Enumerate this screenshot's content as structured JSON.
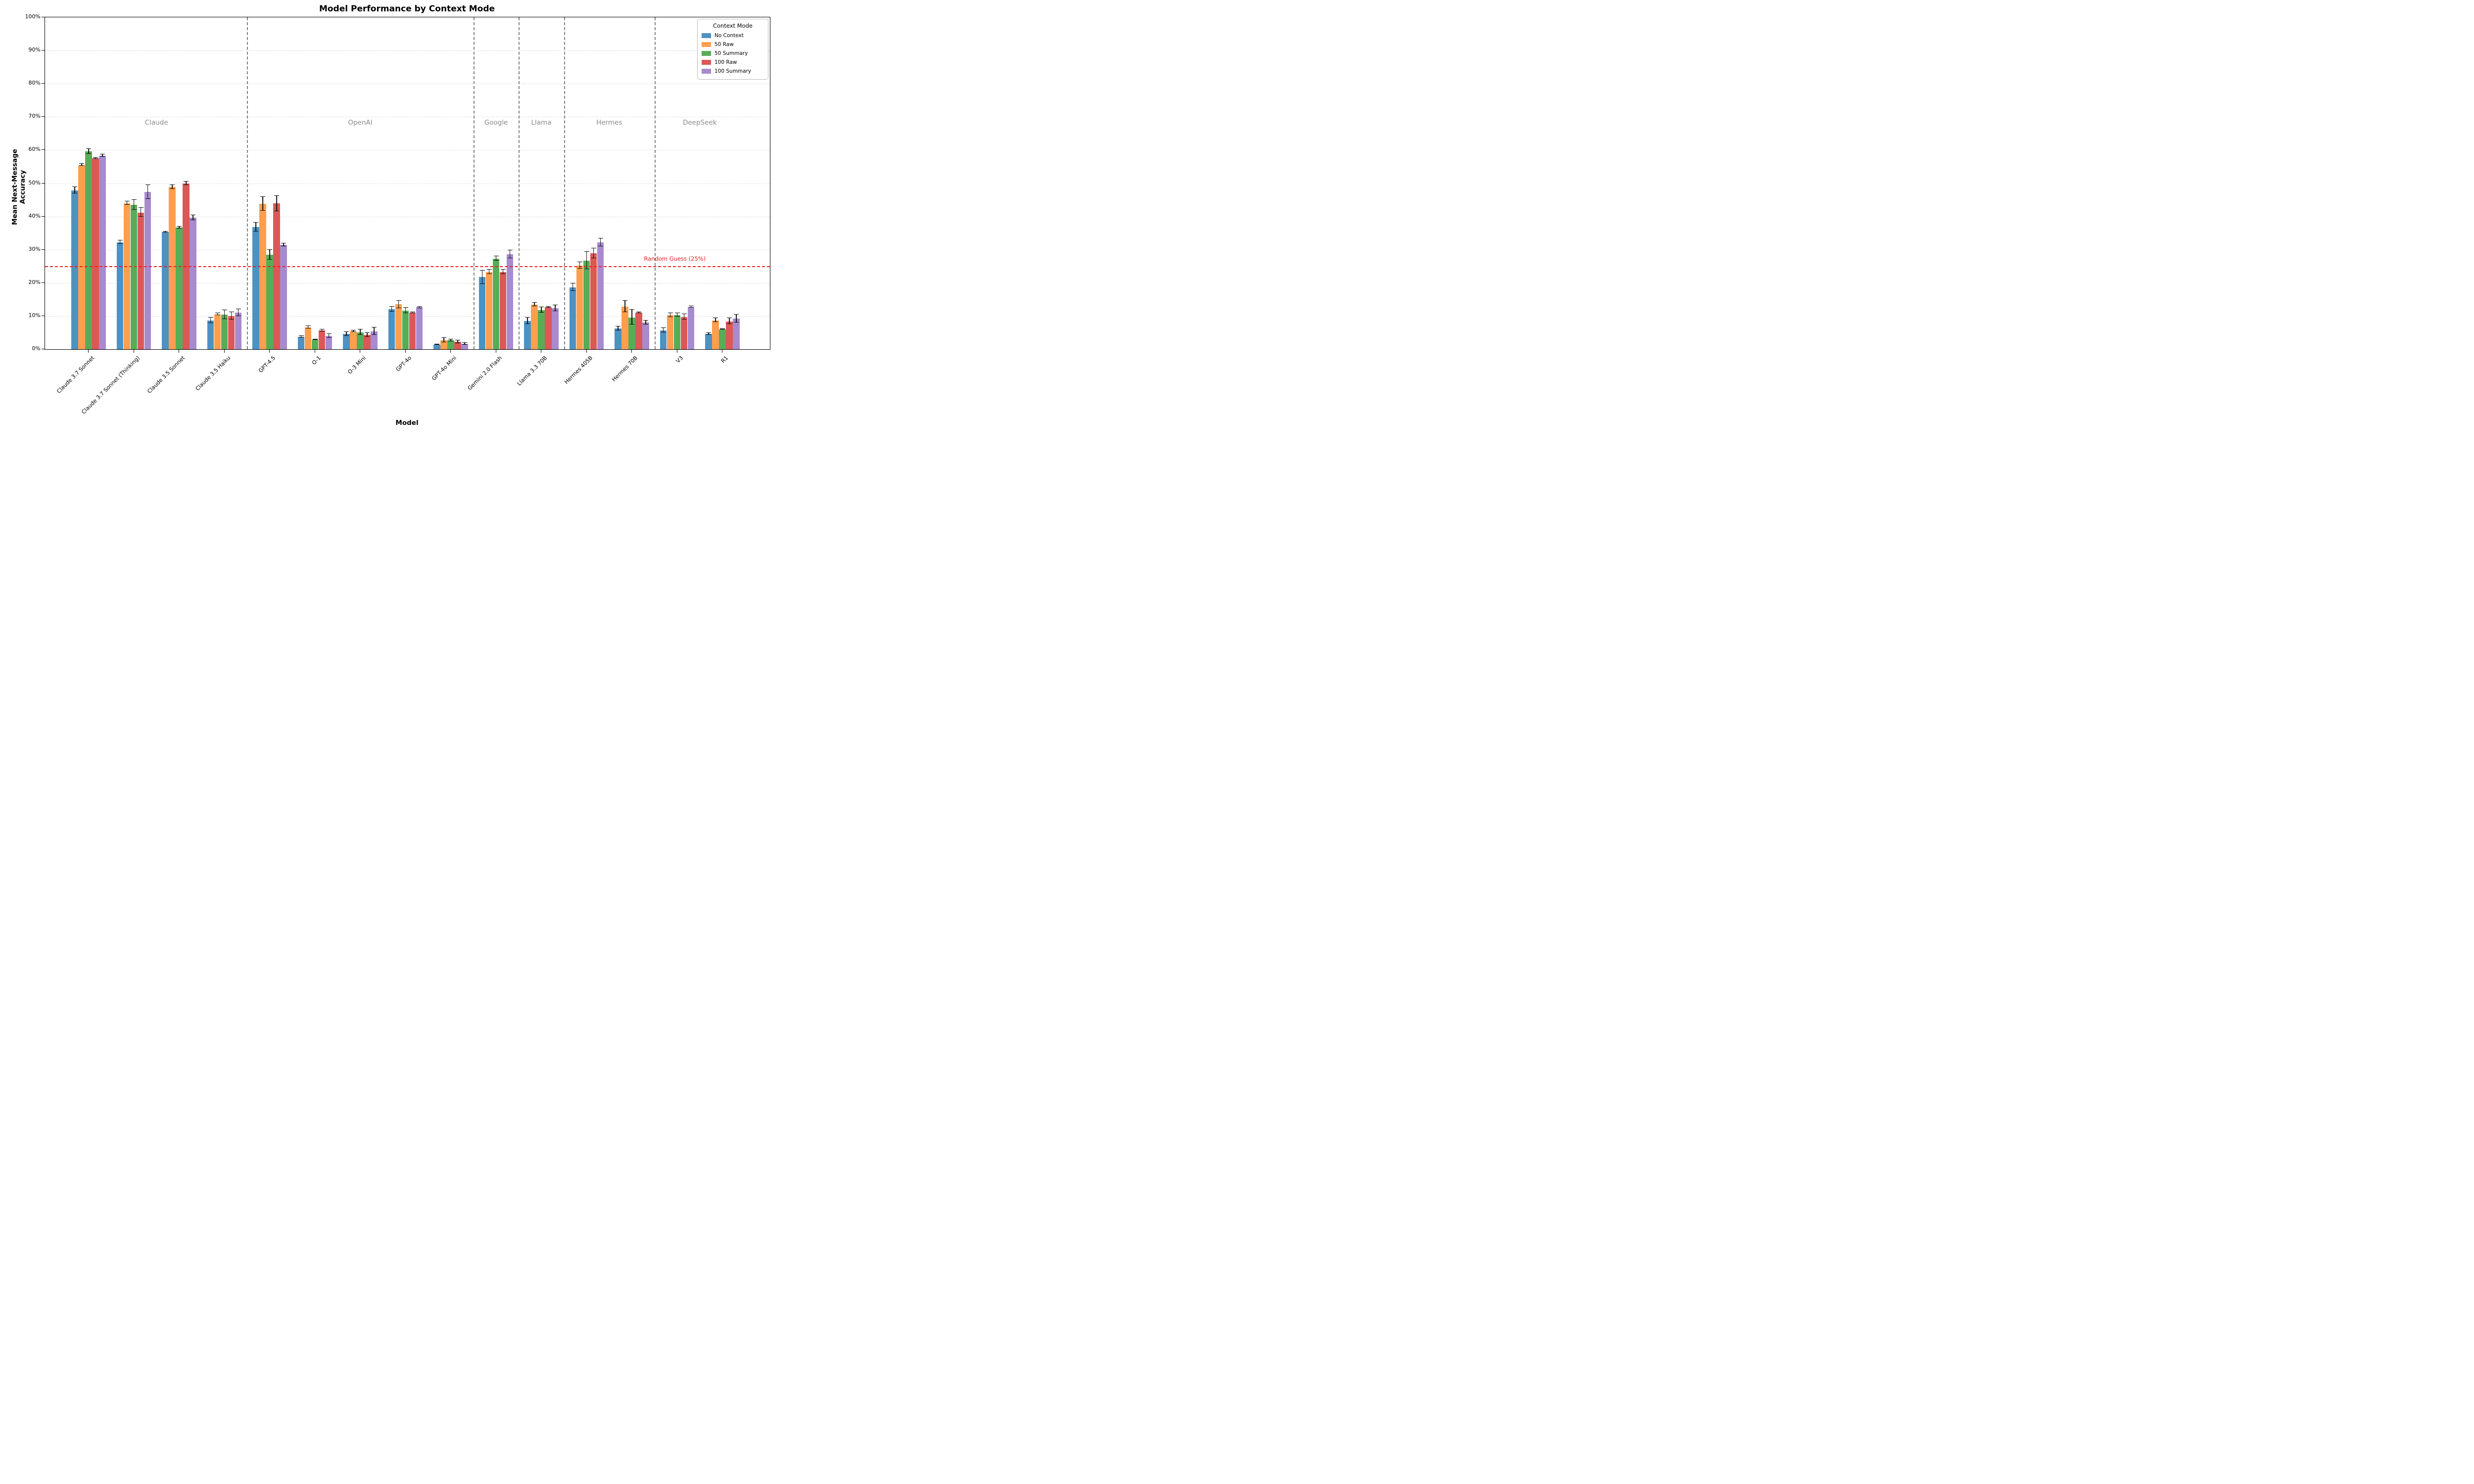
{
  "chart_data": {
    "type": "bar",
    "title": "Model Performance by Context Mode",
    "xlabel": "Model",
    "ylabel": "Mean Next-Message Accuracy",
    "ylim": [
      0,
      100
    ],
    "yticks": [
      0,
      10,
      20,
      30,
      40,
      50,
      60,
      70,
      80,
      90,
      100
    ],
    "ytick_suffix": "%",
    "grid": "horizontal-dashed",
    "legend_title": "Context Mode",
    "legend_position": "top-right",
    "random_guess_line": {
      "value": 25,
      "label": "Random Guess (25%)",
      "color": "#e82020"
    },
    "categories": [
      "Claude 3.7 Sonnet",
      "Claude 3.7 Sonnet (Thinking)",
      "Claude 3.5 Sonnet",
      "Claude 3.5 Haiku",
      "GPT-4.5",
      "O-1",
      "O-3 Mini",
      "GPT-4o",
      "GPT-4o Mini",
      "Gemini 2.0 Flash",
      "Llama 3.3 70B",
      "Hermes 405B",
      "Hermes 70B",
      "V3",
      "R1"
    ],
    "sections": [
      {
        "label": "Claude",
        "from": 0,
        "to": 3
      },
      {
        "label": "OpenAI",
        "from": 4,
        "to": 8
      },
      {
        "label": "Google",
        "from": 9,
        "to": 9
      },
      {
        "label": "Llama",
        "from": 10,
        "to": 10
      },
      {
        "label": "Hermes",
        "from": 11,
        "to": 12
      },
      {
        "label": "DeepSeek",
        "from": 13,
        "to": 14
      }
    ],
    "section_label_y_pct": 70,
    "series": [
      {
        "name": "No Context",
        "color": "#4C92C3",
        "values": [
          47.9,
          32.2,
          35.3,
          8.7,
          36.8,
          3.7,
          4.6,
          12.0,
          1.4,
          21.7,
          8.5,
          18.7,
          6.2,
          5.7,
          4.6
        ],
        "errors": [
          1.2,
          0.7,
          0.3,
          1.0,
          1.5,
          0.4,
          0.8,
          0.9,
          0.3,
          2.2,
          1.2,
          1.3,
          0.8,
          0.9,
          0.5
        ]
      },
      {
        "name": "50 Raw",
        "color": "#FF9F4E",
        "values": [
          55.5,
          44.0,
          48.9,
          10.5,
          43.8,
          6.6,
          5.4,
          13.5,
          2.7,
          23.3,
          13.4,
          25.2,
          12.8,
          10.3,
          8.7
        ],
        "errors": [
          0.5,
          0.7,
          0.8,
          0.5,
          2.3,
          0.6,
          0.4,
          1.3,
          0.9,
          0.9,
          0.7,
          1.2,
          1.9,
          0.8,
          0.8
        ]
      },
      {
        "name": "50 Summary",
        "color": "#57AD57",
        "values": [
          59.6,
          43.5,
          36.6,
          10.4,
          28.4,
          2.9,
          5.1,
          11.6,
          2.7,
          27.3,
          11.8,
          26.7,
          9.6,
          10.3,
          6.0
        ],
        "errors": [
          0.9,
          1.7,
          0.5,
          1.5,
          1.7,
          0.3,
          1.0,
          1.0,
          0.5,
          0.9,
          1.0,
          2.8,
          2.4,
          0.7,
          0.3
        ]
      },
      {
        "name": "100 Raw",
        "color": "#DB5857",
        "values": [
          57.5,
          41.2,
          49.9,
          10.0,
          43.9,
          5.6,
          4.3,
          11.0,
          2.2,
          23.3,
          12.6,
          28.9,
          11.0,
          9.7,
          8.4
        ],
        "errors": [
          0.3,
          1.5,
          0.7,
          1.3,
          2.5,
          0.5,
          0.8,
          0.4,
          0.6,
          0.9,
          0.3,
          1.7,
          0.3,
          1.0,
          1.1
        ]
      },
      {
        "name": "100 Summary",
        "color": "#A88BCE",
        "values": [
          58.3,
          47.4,
          39.6,
          11.0,
          31.4,
          4.0,
          5.4,
          12.6,
          1.6,
          28.6,
          12.3,
          32.2,
          8.0,
          12.7,
          9.2
        ],
        "errors": [
          0.6,
          2.3,
          0.9,
          1.2,
          0.6,
          0.8,
          1.3,
          0.4,
          0.5,
          1.4,
          1.1,
          1.4,
          0.8,
          0.4,
          1.4
        ]
      }
    ]
  }
}
